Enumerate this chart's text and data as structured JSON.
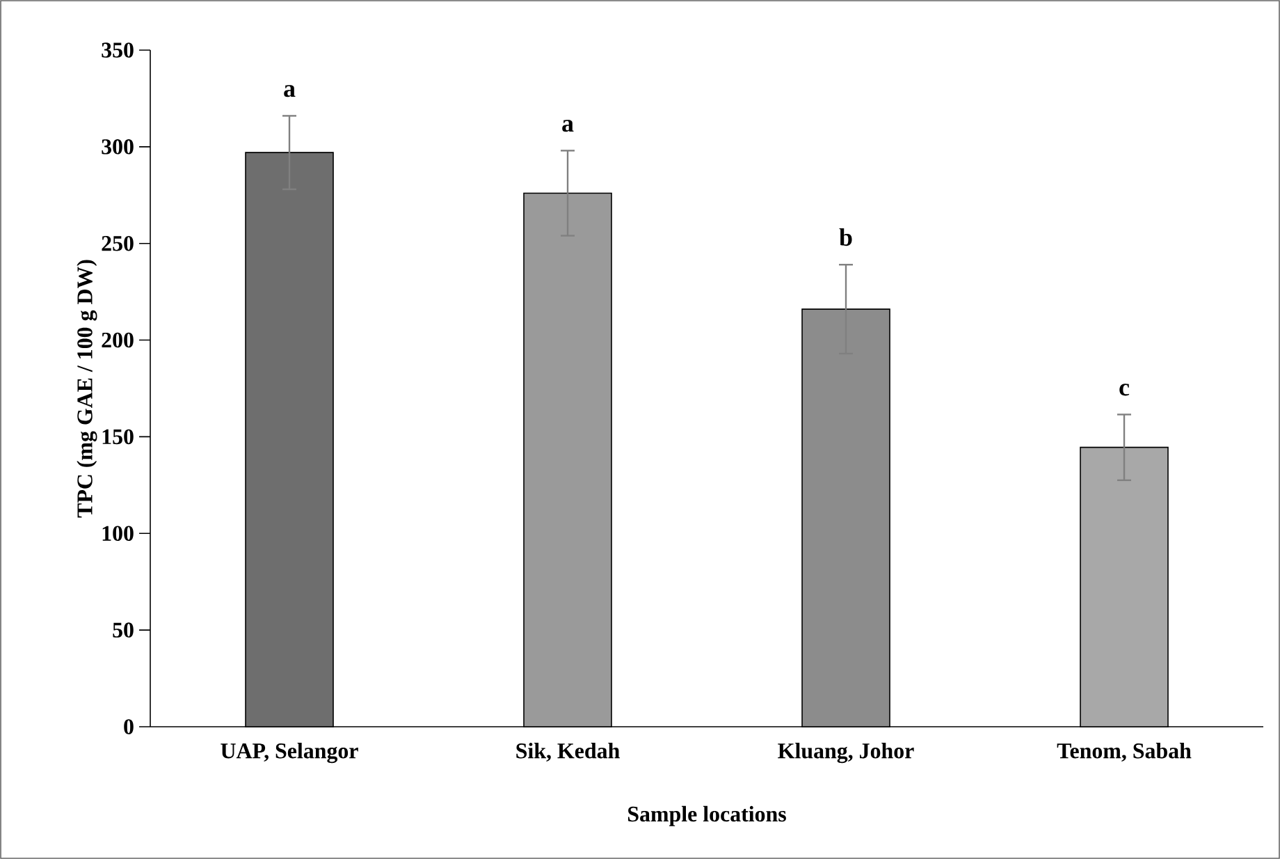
{
  "chart_data": {
    "type": "bar",
    "xlabel": "Sample locations",
    "ylabel": "TPC (mg GAE / 100 g DW)",
    "categories": [
      "UAP, Selangor",
      "Sik, Kedah",
      "Kluang, Johor",
      "Tenom, Sabah"
    ],
    "values": [
      297,
      276,
      216,
      144.5
    ],
    "errors": [
      19,
      22,
      23,
      17
    ],
    "colors": [
      "#6e6e6e",
      "#9a9a9a",
      "#8c8c8c",
      "#a8a8a8"
    ],
    "ylim": [
      0,
      350
    ],
    "yticks": [
      0,
      50,
      100,
      150,
      200,
      250,
      300,
      350
    ],
    "grid": false,
    "annotations": [
      "a",
      "a",
      "b",
      "c"
    ]
  }
}
